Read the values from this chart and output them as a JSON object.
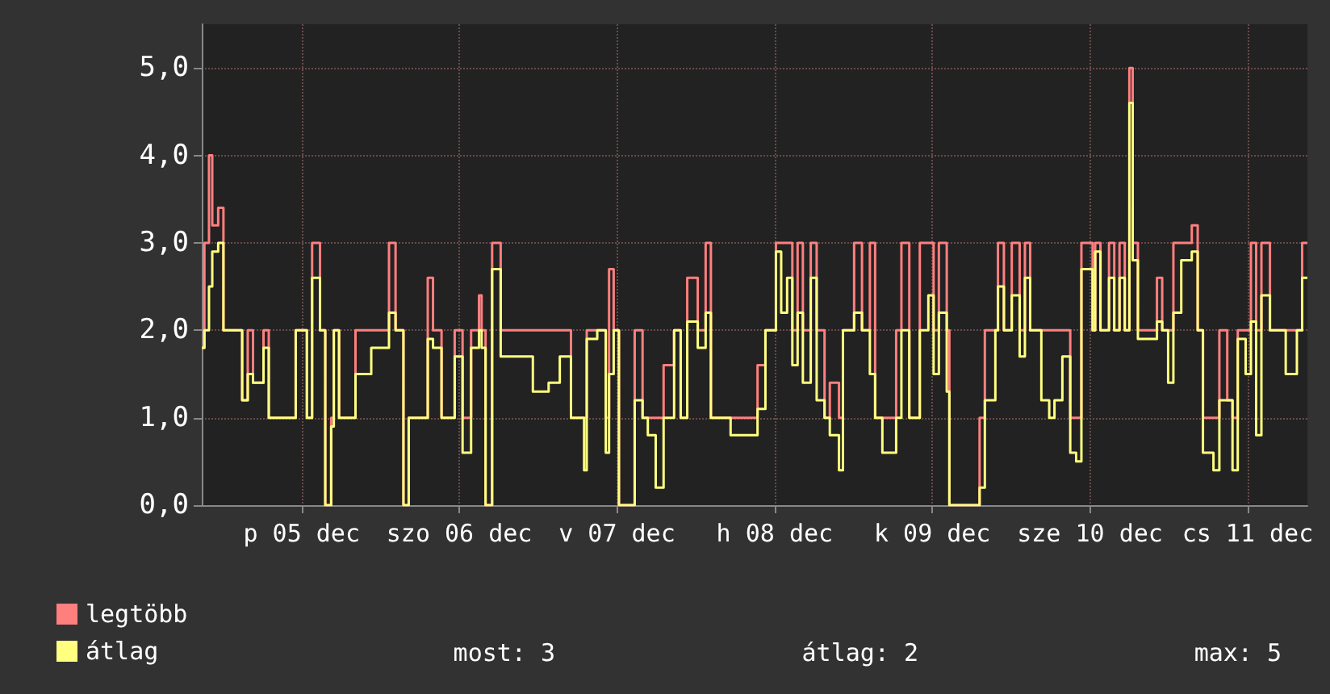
{
  "chart_data": {
    "type": "step",
    "x": [
      "--12-04T20:48",
      "--12-04T21:12",
      "--12-04T21:54",
      "--12-04T22:24",
      "--12-04T23:18",
      "--12-05T00:06",
      "--12-05T02:57",
      "--12-05T03:48",
      "--12-05T04:36",
      "--12-05T06:12",
      "--12-05T07:00",
      "--12-05T11:06",
      "--12-05T12:48",
      "--12-05T13:36",
      "--12-05T14:48",
      "--12-05T15:36",
      "--12-05T16:30",
      "--12-05T16:54",
      "--12-05T17:42",
      "--12-05T20:12",
      "--12-05T22:36",
      "--12-06T01:18",
      "--12-06T02:18",
      "--12-06T03:30",
      "--12-06T04:18",
      "--12-06T06:06",
      "--12-06T07:12",
      "--12-06T08:00",
      "--12-06T09:18",
      "--12-06T11:18",
      "--12-06T12:30",
      "--12-06T13:48",
      "--12-06T15:00",
      "--12-06T15:24",
      "--12-06T16:00",
      "--12-06T17:00",
      "--12-06T18:18",
      "--12-06T20:42",
      "--12-06T23:12",
      "--12-07T01:36",
      "--12-07T03:18",
      "--12-07T05:00",
      "--12-07T07:00",
      "--12-07T07:24",
      "--12-07T09:00",
      "--12-07T10:18",
      "--12-07T10:48",
      "--12-07T11:30",
      "--12-07T12:18",
      "--12-07T14:42",
      "--12-07T15:54",
      "--12-07T16:42",
      "--12-07T17:54",
      "--12-07T19:06",
      "--12-07T20:42",
      "--12-07T21:42",
      "--12-07T22:42",
      "--12-08T00:18",
      "--12-08T01:30",
      "--12-08T02:18",
      "--12-08T05:18",
      "--12-08T07:42",
      "--12-08T09:24",
      "--12-08T10:36",
      "--12-08T12:12",
      "--12-08T13:00",
      "--12-08T13:54",
      "--12-08T14:42",
      "--12-08T15:30",
      "--12-08T16:18",
      "--12-08T17:30",
      "--12-08T18:24",
      "--12-08T19:36",
      "--12-08T20:24",
      "--12-08T21:48",
      "--12-08T22:24",
      "--12-09T00:06",
      "--12-09T01:18",
      "--12-09T02:30",
      "--12-09T03:18",
      "--12-09T04:24",
      "--12-09T06:30",
      "--12-09T07:18",
      "--12-09T08:30",
      "--12-09T10:06",
      "--12-09T11:24",
      "--12-09T12:12",
      "--12-09T13:00",
      "--12-09T14:12",
      "--12-09T14:36",
      "--12-09T19:12",
      "--12-09T20:00",
      "--12-09T21:36",
      "--12-09T22:00",
      "--12-09T22:54",
      "--12-10T00:06",
      "--12-10T01:18",
      "--12-10T02:06",
      "--12-10T02:54",
      "--12-10T04:36",
      "--12-10T05:48",
      "--12-10T06:36",
      "--12-10T07:48",
      "--12-10T09:00",
      "--12-10T09:54",
      "--12-10T10:42",
      "--12-10T12:24",
      "--12-10T12:48",
      "--12-10T13:36",
      "--12-10T14:54",
      "--12-10T15:42",
      "--12-10T16:30",
      "--12-10T17:18",
      "--12-10T18:00",
      "--12-10T18:30",
      "--12-10T19:18",
      "--12-10T20:36",
      "--12-10T22:12",
      "--12-10T23:00",
      "--12-10T23:54",
      "--12-11T00:42",
      "--12-11T01:54",
      "--12-11T03:30",
      "--12-11T04:24",
      "--12-11T05:12",
      "--12-11T06:48",
      "--12-11T07:42",
      "--12-11T08:54",
      "--12-11T09:42",
      "--12-11T10:30",
      "--12-11T11:42",
      "--12-11T12:30",
      "--12-11T13:18",
      "--12-11T14:06",
      "--12-11T15:24",
      "--12-11T17:48",
      "--12-11T19:30",
      "--12-11T20:18",
      "--12-11T21:06"
    ],
    "series": [
      {
        "name": "legtöbb",
        "color": "#ff7f7f",
        "values": [
          1.8,
          3,
          4,
          3.2,
          3.4,
          2,
          1.2,
          2,
          1.4,
          2,
          1,
          2,
          1,
          3,
          2,
          0,
          1,
          2,
          1,
          2,
          2,
          3,
          2,
          0,
          1,
          1,
          2.6,
          2,
          1,
          2,
          1,
          2,
          2.4,
          2,
          0,
          3,
          2,
          2,
          2,
          2,
          2,
          1,
          1,
          2,
          2,
          1,
          2.7,
          2,
          0,
          2,
          1,
          1,
          1,
          1.6,
          2,
          1,
          2.6,
          2,
          3,
          1,
          1,
          1,
          1.6,
          2,
          3,
          3,
          3,
          2,
          3,
          2,
          3,
          2,
          1,
          1.4,
          1,
          2,
          3,
          2,
          3,
          1,
          1,
          2,
          3,
          1,
          3,
          3,
          2,
          3,
          2,
          0,
          1,
          2,
          2,
          3,
          2,
          3,
          2,
          3,
          2,
          2,
          2,
          2,
          2,
          1,
          1,
          3,
          2,
          3,
          2,
          3,
          2,
          3,
          2,
          5,
          3,
          2,
          2,
          2.6,
          2,
          2,
          3,
          3,
          3.2,
          2,
          1,
          1,
          2,
          1.2,
          1,
          2,
          2,
          3,
          2,
          3,
          2,
          2,
          2,
          3,
          3
        ]
      },
      {
        "name": "átlag",
        "color": "#ffff80",
        "values": [
          1.8,
          2,
          2.5,
          2.9,
          3,
          2,
          1.2,
          1.5,
          1.4,
          1.8,
          1,
          2,
          1,
          2.6,
          2,
          0,
          0.9,
          2,
          1,
          1.5,
          1.8,
          2.2,
          2,
          0,
          1,
          1,
          1.9,
          1.8,
          1,
          1.7,
          0.6,
          1.8,
          2,
          1.8,
          0,
          2.7,
          1.7,
          1.7,
          1.3,
          1.4,
          1.7,
          1,
          0.4,
          1.9,
          2,
          0.6,
          1.5,
          2,
          0,
          1.2,
          1,
          0.8,
          0.2,
          1,
          2,
          1,
          2.1,
          1.8,
          2.2,
          1,
          0.8,
          0.8,
          1.1,
          2,
          2.9,
          2.2,
          2.6,
          1.6,
          2.2,
          1.4,
          2.6,
          1.2,
          1,
          0.8,
          0.4,
          2,
          2.2,
          2,
          1.5,
          1,
          0.6,
          1,
          2,
          1,
          2,
          2.4,
          1.5,
          2.2,
          1.3,
          0,
          0.2,
          1.2,
          2,
          2.5,
          2,
          2.4,
          1.7,
          2.6,
          2,
          1.2,
          1,
          1.2,
          1.7,
          0.6,
          0.5,
          2.7,
          2,
          2.9,
          2,
          2.6,
          2,
          2.6,
          2,
          4.6,
          2.8,
          1.9,
          1.9,
          2.1,
          2,
          1.4,
          2.2,
          2.8,
          2.9,
          2,
          0.6,
          0.4,
          1.2,
          1.2,
          0.4,
          1.9,
          1.5,
          2.1,
          0.8,
          2.4,
          2,
          1.5,
          2,
          2.6,
          2.6
        ]
      }
    ],
    "xlim": [
      "--12-04T20:48",
      "--12-11T21:06"
    ],
    "xticks": [
      {
        "value": "--12-05T12:00",
        "label": "p 05 dec"
      },
      {
        "value": "--12-06T12:00",
        "label": "szo 06 dec"
      },
      {
        "value": "--12-07T12:00",
        "label": "v 07 dec"
      },
      {
        "value": "--12-08T12:00",
        "label": "h 08 dec"
      },
      {
        "value": "--12-09T12:00",
        "label": "k 09 dec"
      },
      {
        "value": "--12-10T12:00",
        "label": "sze 10 dec"
      },
      {
        "value": "--12-11T12:00",
        "label": "cs 11 dec"
      }
    ],
    "ylim": [
      0,
      5.5
    ],
    "yticks": [
      {
        "value": 0,
        "label": "0,0"
      },
      {
        "value": 1,
        "label": "1,0"
      },
      {
        "value": 2,
        "label": "2,0"
      },
      {
        "value": 3,
        "label": "3,0"
      },
      {
        "value": 4,
        "label": "4,0"
      },
      {
        "value": 5,
        "label": "5,0"
      }
    ],
    "grid": true,
    "legend": "bottom left",
    "annotations": [
      "most: 3",
      "átlag: 2",
      "max: 5"
    ]
  }
}
